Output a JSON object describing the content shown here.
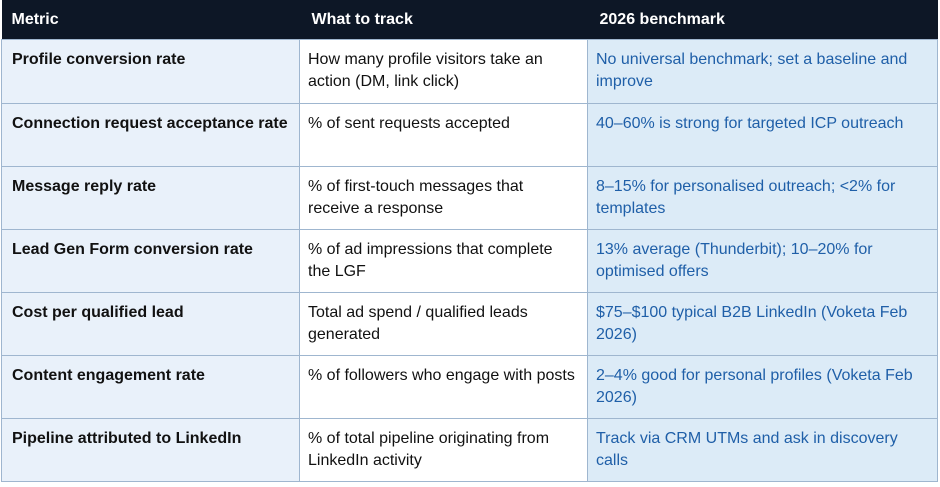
{
  "headers": {
    "metric": "Metric",
    "track": "What to track",
    "benchmark": "2026 benchmark"
  },
  "rows": [
    {
      "metric": "Profile conversion rate",
      "track": "How many profile visitors take an action (DM, link click)",
      "benchmark": "No universal benchmark; set a baseline and improve"
    },
    {
      "metric": "Connection request acceptance rate",
      "track": "% of sent requests accepted",
      "benchmark": "40–60% is strong for targeted ICP outreach"
    },
    {
      "metric": "Message reply rate",
      "track": "% of first-touch messages that receive a response",
      "benchmark": "8–15% for personalised outreach; <2% for templates"
    },
    {
      "metric": "Lead Gen Form conversion rate",
      "track": "% of ad impressions that complete the LGF",
      "benchmark": "13% average (Thunderbit); 10–20% for optimised offers"
    },
    {
      "metric": "Cost per qualified lead",
      "track": "Total ad spend / qualified leads generated",
      "benchmark": "$75–$100 typical B2B LinkedIn (Voketa Feb 2026)"
    },
    {
      "metric": "Content engagement rate",
      "track": "% of followers who engage with posts",
      "benchmark": "2–4% good for personal profiles (Voketa Feb 2026)"
    },
    {
      "metric": "Pipeline attributed to LinkedIn",
      "track": "% of total pipeline originating from LinkedIn activity",
      "benchmark": "Track via CRM UTMs and ask in discovery calls"
    }
  ],
  "colors": {
    "header_bg": "#0d1726",
    "metric_bg": "#e9f1fa",
    "benchmark_bg": "#dcebf7",
    "benchmark_text": "#1f5fa8",
    "border": "#9fb6cf"
  }
}
